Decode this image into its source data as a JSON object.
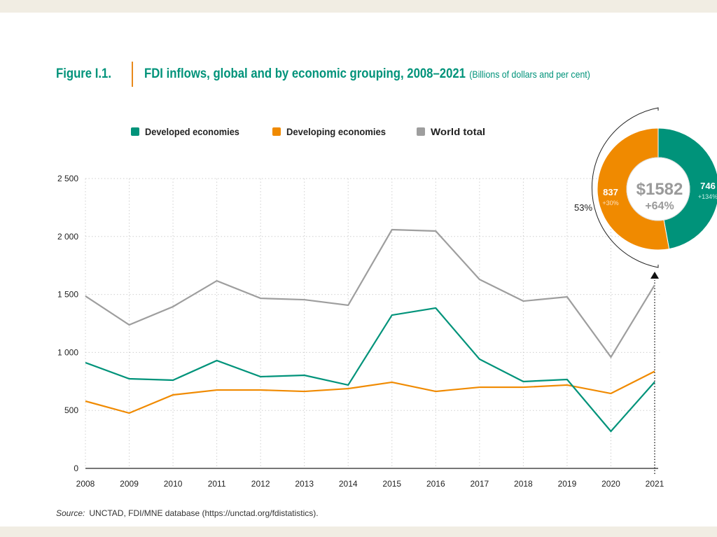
{
  "figure_label": "Figure I.1.",
  "title": "FDI inflows, global and by economic grouping, 2008–2021",
  "units": "(Billions of dollars and per cent)",
  "source_label": "Source:",
  "source_text": "UNCTAD, FDI/MNE database (https://unctad.org/fdistatistics).",
  "chart_data": {
    "type": "line",
    "x": [
      "2008",
      "2009",
      "2010",
      "2011",
      "2012",
      "2013",
      "2014",
      "2015",
      "2016",
      "2017",
      "2018",
      "2019",
      "2020",
      "2021"
    ],
    "ylim": [
      0,
      2500
    ],
    "yticks": [
      "0",
      "500",
      "1 000",
      "1 500",
      "2 000",
      "2 500"
    ],
    "ytick_values": [
      0,
      500,
      1000,
      1500,
      2000,
      2500
    ],
    "grid": true,
    "legend_position": "top",
    "series": [
      {
        "name": "Developed economies",
        "color": "#00937a",
        "values": [
          912,
          773,
          761,
          930,
          791,
          803,
          719,
          1322,
          1383,
          942,
          749,
          767,
          320,
          746
        ]
      },
      {
        "name": "Developing economies",
        "color": "#f08a00",
        "values": [
          580,
          477,
          634,
          676,
          676,
          664,
          688,
          743,
          664,
          700,
          700,
          719,
          646,
          837
        ]
      },
      {
        "name": "World total",
        "color": "#9e9e9e",
        "values": [
          1486,
          1238,
          1395,
          1618,
          1467,
          1455,
          1407,
          2059,
          2047,
          1630,
          1443,
          1479,
          960,
          1582
        ]
      }
    ],
    "donut": {
      "total": "$1582",
      "total_change": "+64%",
      "developing_value": "837",
      "developing_change": "+30%",
      "developed_value": "746",
      "developed_change": "+134%",
      "developing_share": "53%",
      "slices": [
        {
          "name": "Developed economies",
          "value": 746,
          "color": "#00937a"
        },
        {
          "name": "Developing economies",
          "value": 837,
          "color": "#f08a00"
        }
      ]
    }
  }
}
